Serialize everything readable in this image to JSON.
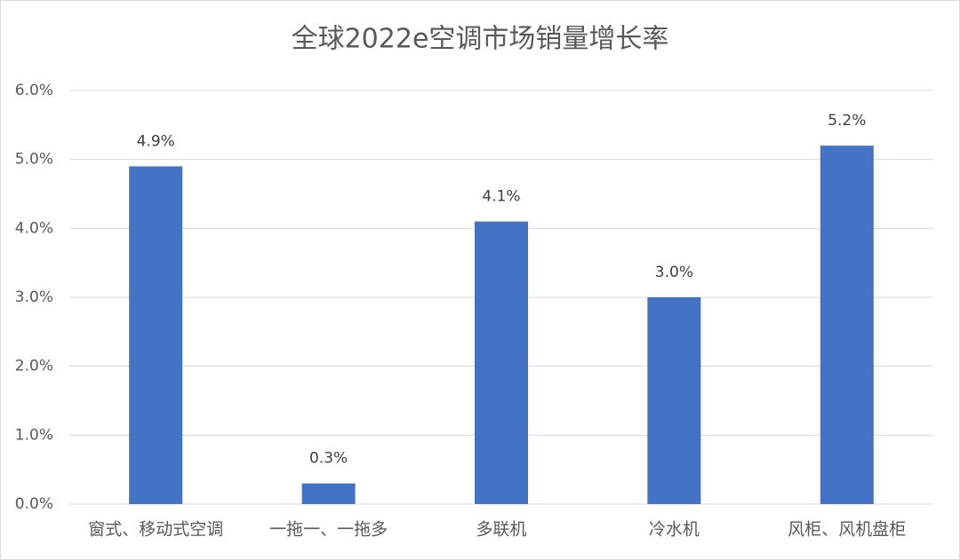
{
  "chart_data": {
    "type": "bar",
    "title": "全球2022e空调市场销量增长率",
    "categories": [
      "窗式、移动式空调",
      "一拖一、一拖多",
      "多联机",
      "冷水机",
      "风柜、风机盘柜"
    ],
    "values": [
      4.9,
      0.3,
      4.1,
      3.0,
      5.2
    ],
    "value_labels": [
      "4.9%",
      "0.3%",
      "4.1%",
      "3.0%",
      "5.2%"
    ],
    "color": "#4472c4",
    "ylim": [
      0,
      6
    ],
    "yticks": [
      {
        "value": 0,
        "label": "0.0%"
      },
      {
        "value": 1,
        "label": "1.0%"
      },
      {
        "value": 2,
        "label": "2.0%"
      },
      {
        "value": 3,
        "label": "3.0%"
      },
      {
        "value": 4,
        "label": "4.0%"
      },
      {
        "value": 5,
        "label": "5.0%"
      },
      {
        "value": 6,
        "label": "6.0%"
      }
    ],
    "grid": true
  }
}
